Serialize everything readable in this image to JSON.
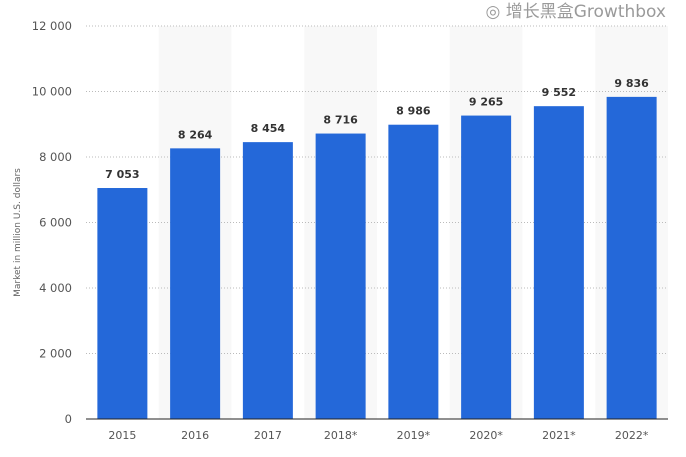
{
  "chart_data": {
    "type": "bar",
    "title": "",
    "xlabel": "",
    "ylabel": "Market in million U.S. dollars",
    "categories": [
      "2015",
      "2016",
      "2017",
      "2018*",
      "2019*",
      "2020*",
      "2021*",
      "2022*"
    ],
    "values": [
      7053,
      8264,
      8454,
      8716,
      8986,
      9265,
      9552,
      9836
    ],
    "data_labels": [
      "7 053",
      "8 264",
      "8 454",
      "8 716",
      "8 986",
      "9 265",
      "9 552",
      "9 836"
    ],
    "ylim": [
      0,
      12000
    ],
    "yticks": [
      0,
      2000,
      4000,
      6000,
      8000,
      10000,
      12000
    ],
    "ytick_labels": [
      "0",
      "2 000",
      "4 000",
      "6 000",
      "8 000",
      "10 000",
      "12 000"
    ],
    "grid": true,
    "bar_color": "#2468d9",
    "alternate_band_color": "#f8f8f8"
  },
  "watermark": "增长黑盒Growthbox"
}
